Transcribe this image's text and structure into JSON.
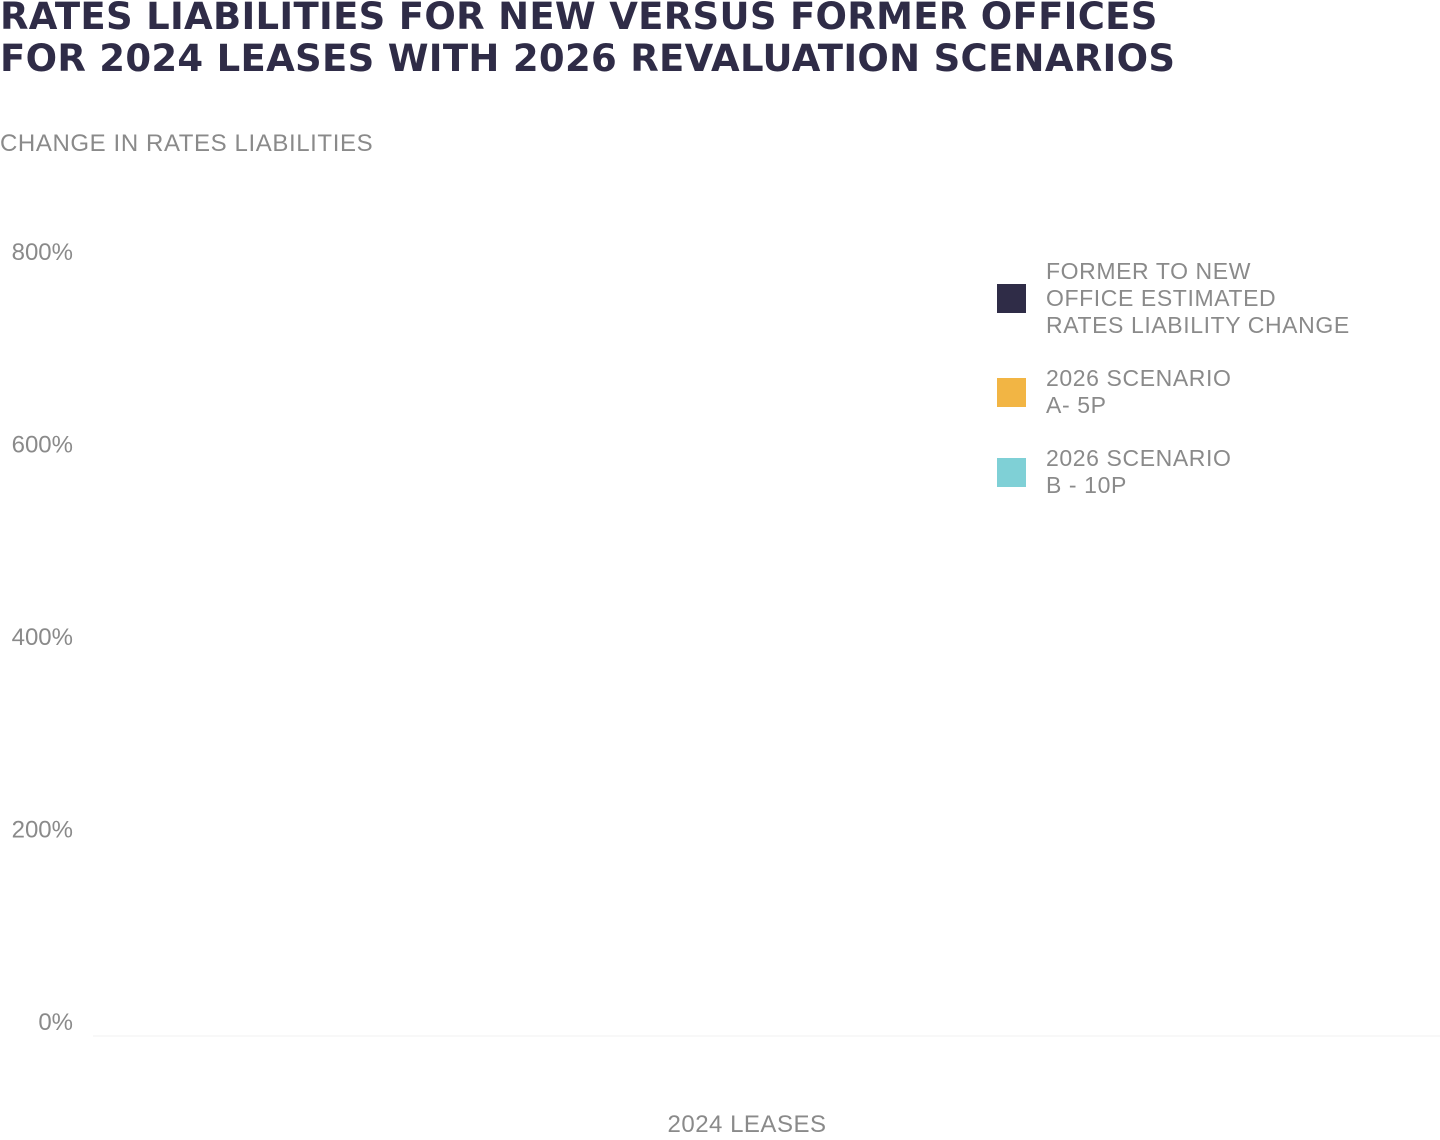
{
  "title": {
    "line1": "RATES LIABILITIES FOR NEW VERSUS FORMER OFFICES",
    "line2": "FOR 2024 LEASES WITH 2026 REVALUATION SCENARIOS"
  },
  "colors": {
    "title": "#2f2c47",
    "text": "#8a8a8a",
    "series_former_to_new": "#2f2c47",
    "series_scenario_a": "#f2b544",
    "series_scenario_b": "#7fd0d6"
  },
  "chart_data": {
    "type": "bar",
    "title": "RATES LIABILITIES FOR NEW VERSUS FORMER OFFICES FOR 2024 LEASES WITH 2026 REVALUATION SCENARIOS",
    "ylabel": "CHANGE IN RATES LIABILITIES",
    "xlabel": "2024 LEASES",
    "categories": [
      "2024 LEASES"
    ],
    "series": [
      {
        "name": "FORMER TO NEW\nOFFICE ESTIMATED\nRATES LIABILITY CHANGE",
        "color": "#2f2c47",
        "values": [
          0
        ]
      },
      {
        "name": "2026 SCENARIO\nA- 5P",
        "color": "#f2b544",
        "values": [
          0
        ]
      },
      {
        "name": "2026 SCENARIO\nB - 10P",
        "color": "#7fd0d6",
        "values": [
          0
        ]
      }
    ],
    "ylim": [
      0,
      800
    ],
    "yticks": [
      0,
      200,
      400,
      600,
      800
    ],
    "ytick_labels": [
      "0%",
      "200%",
      "400%",
      "600%",
      "800%"
    ],
    "grid": false,
    "legend": "top-right"
  }
}
